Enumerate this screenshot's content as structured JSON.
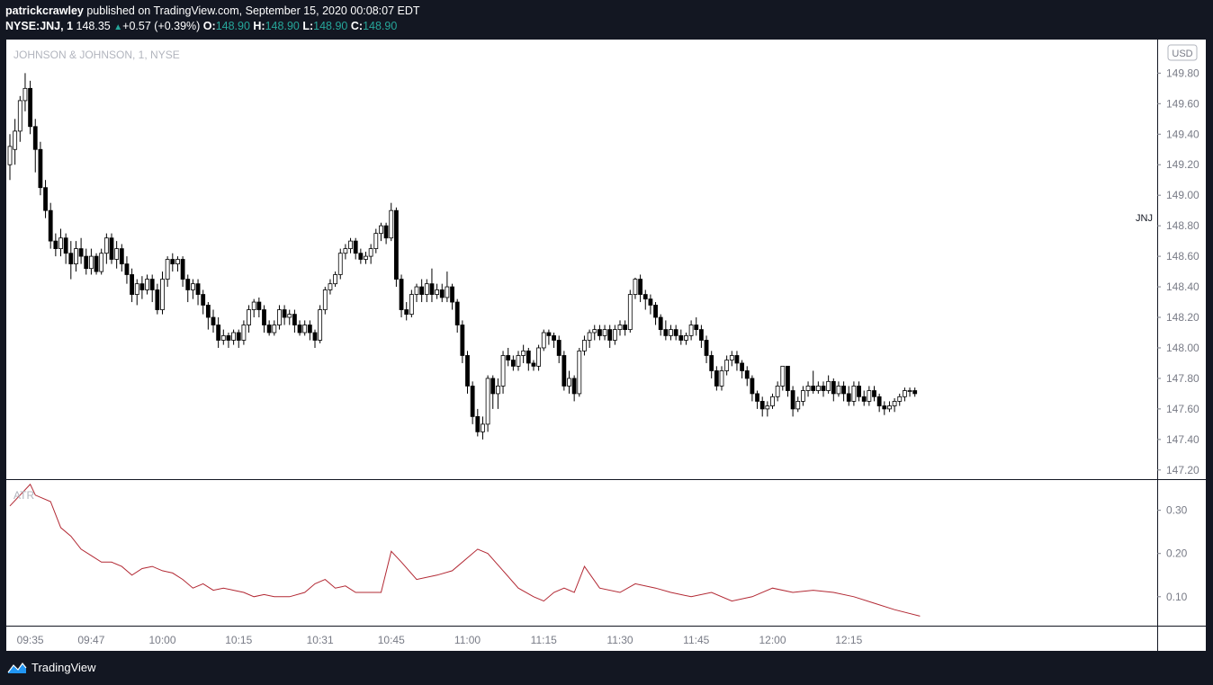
{
  "header": {
    "author": "patrickcrawley",
    "published_text": "published on TradingView.com, September 15, 2020 00:08:07 EDT",
    "symbol": "NYSE:JNJ, 1",
    "last": "148.35",
    "change": "+0.57 (+0.39%)",
    "o_label": "O:",
    "o": "148.90",
    "h_label": "H:",
    "h": "148.90",
    "l_label": "L:",
    "l": "148.90",
    "c_label": "C:",
    "c": "148.90"
  },
  "legend": "JOHNSON & JOHNSON, 1, NYSE",
  "currency": "USD",
  "symbol_tag": "JNJ",
  "indicator_label": "ATR",
  "footer": {
    "brand": "TradingView"
  },
  "colors": {
    "background": "#131722",
    "pane": "#ffffff",
    "up_fill": "#ffffff",
    "down_fill": "#000000",
    "atr_line": "#b22833",
    "positive": "#26a69a"
  },
  "chart_data": [
    {
      "type": "candlestick",
      "title": "JOHNSON & JOHNSON, 1, NYSE",
      "ylim": [
        147.14,
        150.02
      ],
      "y_ticks": [
        149.8,
        149.6,
        149.4,
        149.2,
        149.0,
        148.8,
        148.6,
        148.4,
        148.2,
        148.0,
        147.8,
        147.6,
        147.4,
        147.2
      ],
      "x_ticks": [
        "09:35",
        "09:47",
        "10:00",
        "10:15",
        "10:31",
        "10:45",
        "11:00",
        "11:15",
        "11:30",
        "11:45",
        "12:00",
        "12:15"
      ],
      "x_tick_index": [
        4,
        16,
        30,
        45,
        61,
        75,
        90,
        105,
        120,
        135,
        150,
        165
      ],
      "candles": [
        [
          149.2,
          149.32,
          149.1,
          149.4
        ],
        [
          149.3,
          149.42,
          149.2,
          149.5
        ],
        [
          149.42,
          149.62,
          149.35,
          149.65
        ],
        [
          149.62,
          149.7,
          149.55,
          149.8
        ],
        [
          149.7,
          149.45,
          149.4,
          149.75
        ],
        [
          149.45,
          149.3,
          149.15,
          149.5
        ],
        [
          149.3,
          149.05,
          149.0,
          149.35
        ],
        [
          149.05,
          148.9,
          148.85,
          149.1
        ],
        [
          148.9,
          148.7,
          148.65,
          148.95
        ],
        [
          148.7,
          148.65,
          148.6,
          148.75
        ],
        [
          148.65,
          148.72,
          148.6,
          148.78
        ],
        [
          148.72,
          148.62,
          148.55,
          148.75
        ],
        [
          148.62,
          148.55,
          148.45,
          148.7
        ],
        [
          148.55,
          148.65,
          148.5,
          148.7
        ],
        [
          148.65,
          148.6,
          148.55,
          148.72
        ],
        [
          148.6,
          148.52,
          148.48,
          148.65
        ],
        [
          148.52,
          148.6,
          148.48,
          148.65
        ],
        [
          148.6,
          148.5,
          148.48,
          148.62
        ],
        [
          148.5,
          148.62,
          148.48,
          148.65
        ],
        [
          148.62,
          148.72,
          148.55,
          148.75
        ],
        [
          148.72,
          148.58,
          148.55,
          148.75
        ],
        [
          148.58,
          148.65,
          148.52,
          148.7
        ],
        [
          148.65,
          148.55,
          148.5,
          148.68
        ],
        [
          148.55,
          148.48,
          148.42,
          148.6
        ],
        [
          148.48,
          148.35,
          148.3,
          148.52
        ],
        [
          148.35,
          148.42,
          148.28,
          148.45
        ],
        [
          148.42,
          148.38,
          148.32,
          148.47
        ],
        [
          148.38,
          148.45,
          148.35,
          148.48
        ],
        [
          148.45,
          148.38,
          148.3,
          148.48
        ],
        [
          148.38,
          148.25,
          148.22,
          148.42
        ],
        [
          148.25,
          148.45,
          148.22,
          148.5
        ],
        [
          148.45,
          148.58,
          148.4,
          148.6
        ],
        [
          148.58,
          148.55,
          148.5,
          148.62
        ],
        [
          148.55,
          148.58,
          148.5,
          148.6
        ],
        [
          148.58,
          148.45,
          148.4,
          148.6
        ],
        [
          148.45,
          148.38,
          148.3,
          148.48
        ],
        [
          148.38,
          148.42,
          148.32,
          148.45
        ],
        [
          148.42,
          148.35,
          148.28,
          148.45
        ],
        [
          148.35,
          148.28,
          148.22,
          148.38
        ],
        [
          148.28,
          148.2,
          148.12,
          148.3
        ],
        [
          148.2,
          148.15,
          148.1,
          148.25
        ],
        [
          148.15,
          148.05,
          148.0,
          148.2
        ],
        [
          148.05,
          148.08,
          148.02,
          148.12
        ],
        [
          148.08,
          148.05,
          148.0,
          148.1
        ],
        [
          148.05,
          148.1,
          148.02,
          148.12
        ],
        [
          148.1,
          148.05,
          148.0,
          148.12
        ],
        [
          148.05,
          148.15,
          148.02,
          148.18
        ],
        [
          148.15,
          148.25,
          148.1,
          148.28
        ],
        [
          148.25,
          148.3,
          148.2,
          148.32
        ],
        [
          148.3,
          148.25,
          148.2,
          148.33
        ],
        [
          148.25,
          148.15,
          148.1,
          148.28
        ],
        [
          148.15,
          148.1,
          148.08,
          148.18
        ],
        [
          148.1,
          148.15,
          148.08,
          148.18
        ],
        [
          148.15,
          148.25,
          148.12,
          148.28
        ],
        [
          148.25,
          148.2,
          148.15,
          148.28
        ],
        [
          148.2,
          148.22,
          148.15,
          148.25
        ],
        [
          148.22,
          148.15,
          148.1,
          148.25
        ],
        [
          148.15,
          148.1,
          148.08,
          148.18
        ],
        [
          148.1,
          148.15,
          148.08,
          148.18
        ],
        [
          148.15,
          148.1,
          148.05,
          148.18
        ],
        [
          148.1,
          148.05,
          148.0,
          148.12
        ],
        [
          148.05,
          148.25,
          148.03,
          148.28
        ],
        [
          148.25,
          148.38,
          148.22,
          148.4
        ],
        [
          148.38,
          148.42,
          148.35,
          148.45
        ],
        [
          148.42,
          148.48,
          148.4,
          148.5
        ],
        [
          148.48,
          148.62,
          148.45,
          148.65
        ],
        [
          148.62,
          148.65,
          148.58,
          148.68
        ],
        [
          148.65,
          148.7,
          148.62,
          148.72
        ],
        [
          148.7,
          148.62,
          148.58,
          148.72
        ],
        [
          148.62,
          148.58,
          148.55,
          148.65
        ],
        [
          148.58,
          148.6,
          148.55,
          148.63
        ],
        [
          148.6,
          148.65,
          148.55,
          148.68
        ],
        [
          148.65,
          148.75,
          148.62,
          148.78
        ],
        [
          148.75,
          148.8,
          148.7,
          148.82
        ],
        [
          148.8,
          148.72,
          148.68,
          148.82
        ],
        [
          148.72,
          148.9,
          148.7,
          148.95
        ],
        [
          148.9,
          148.45,
          148.4,
          148.92
        ],
        [
          148.45,
          148.25,
          148.2,
          148.48
        ],
        [
          148.25,
          148.22,
          148.18,
          148.3
        ],
        [
          148.22,
          148.35,
          148.2,
          148.38
        ],
        [
          148.35,
          148.4,
          148.3,
          148.42
        ],
        [
          148.4,
          148.35,
          148.3,
          148.45
        ],
        [
          148.35,
          148.42,
          148.3,
          148.45
        ],
        [
          148.42,
          148.35,
          148.3,
          148.52
        ],
        [
          148.35,
          148.38,
          148.32,
          148.42
        ],
        [
          148.38,
          148.33,
          148.3,
          148.42
        ],
        [
          148.33,
          148.4,
          148.3,
          148.5
        ],
        [
          148.4,
          148.3,
          148.25,
          148.42
        ],
        [
          148.3,
          148.15,
          148.1,
          148.32
        ],
        [
          148.15,
          147.95,
          147.9,
          148.18
        ],
        [
          147.95,
          147.75,
          147.7,
          147.98
        ],
        [
          147.75,
          147.55,
          147.5,
          147.78
        ],
        [
          147.55,
          147.45,
          147.42,
          147.6
        ],
        [
          147.45,
          147.5,
          147.4,
          147.55
        ],
        [
          147.5,
          147.8,
          147.45,
          147.82
        ],
        [
          147.8,
          147.7,
          147.6,
          147.82
        ],
        [
          147.7,
          147.75,
          147.6,
          147.8
        ],
        [
          147.75,
          147.95,
          147.7,
          147.98
        ],
        [
          147.95,
          147.92,
          147.88,
          148.0
        ],
        [
          147.92,
          147.88,
          147.85,
          147.95
        ],
        [
          147.88,
          147.95,
          147.85,
          147.98
        ],
        [
          147.95,
          147.98,
          147.9,
          148.02
        ],
        [
          147.98,
          147.9,
          147.85,
          148.0
        ],
        [
          147.9,
          147.88,
          147.85,
          147.92
        ],
        [
          147.88,
          148.0,
          147.85,
          148.02
        ],
        [
          148.0,
          148.1,
          147.98,
          148.12
        ],
        [
          148.1,
          148.08,
          148.02,
          148.12
        ],
        [
          148.08,
          148.05,
          148.0,
          148.1
        ],
        [
          148.05,
          147.95,
          147.9,
          148.08
        ],
        [
          147.95,
          147.75,
          147.72,
          147.98
        ],
        [
          147.75,
          147.8,
          147.7,
          147.85
        ],
        [
          147.8,
          147.7,
          147.65,
          147.82
        ],
        [
          147.7,
          147.98,
          147.68,
          148.0
        ],
        [
          147.98,
          148.05,
          147.95,
          148.08
        ],
        [
          148.05,
          148.1,
          148.0,
          148.12
        ],
        [
          148.1,
          148.12,
          148.05,
          148.15
        ],
        [
          148.12,
          148.08,
          148.05,
          148.15
        ],
        [
          148.08,
          148.12,
          148.05,
          148.15
        ],
        [
          148.12,
          148.05,
          148.0,
          148.15
        ],
        [
          148.05,
          148.12,
          148.02,
          148.15
        ],
        [
          148.12,
          148.15,
          148.08,
          148.18
        ],
        [
          148.15,
          148.12,
          148.08,
          148.18
        ],
        [
          148.12,
          148.35,
          148.1,
          148.38
        ],
        [
          148.35,
          148.45,
          148.32,
          148.46
        ],
        [
          148.45,
          148.35,
          148.3,
          148.48
        ],
        [
          148.35,
          148.32,
          148.25,
          148.38
        ],
        [
          148.32,
          148.28,
          148.22,
          148.35
        ],
        [
          148.28,
          148.2,
          148.15,
          148.3
        ],
        [
          148.2,
          148.12,
          148.08,
          148.22
        ],
        [
          148.12,
          148.08,
          148.05,
          148.18
        ],
        [
          148.08,
          148.12,
          148.05,
          148.15
        ],
        [
          148.12,
          148.08,
          148.05,
          148.15
        ],
        [
          148.08,
          148.05,
          148.02,
          148.12
        ],
        [
          148.05,
          148.08,
          148.02,
          148.1
        ],
        [
          148.08,
          148.15,
          148.05,
          148.18
        ],
        [
          148.15,
          148.12,
          148.08,
          148.2
        ],
        [
          148.12,
          148.05,
          148.0,
          148.15
        ],
        [
          148.05,
          147.95,
          147.9,
          148.08
        ],
        [
          147.95,
          147.85,
          147.8,
          147.98
        ],
        [
          147.85,
          147.75,
          147.72,
          147.88
        ],
        [
          147.75,
          147.85,
          147.72,
          147.88
        ],
        [
          147.85,
          147.92,
          147.82,
          147.95
        ],
        [
          147.92,
          147.95,
          147.88,
          147.98
        ],
        [
          147.95,
          147.9,
          147.85,
          147.98
        ],
        [
          147.9,
          147.85,
          147.8,
          147.92
        ],
        [
          147.85,
          147.8,
          147.75,
          147.88
        ],
        [
          147.8,
          147.7,
          147.65,
          147.82
        ],
        [
          147.7,
          147.65,
          147.6,
          147.72
        ],
        [
          147.65,
          147.6,
          147.55,
          147.68
        ],
        [
          147.6,
          147.62,
          147.55,
          147.65
        ],
        [
          147.62,
          147.68,
          147.6,
          147.7
        ],
        [
          147.68,
          147.75,
          147.65,
          147.78
        ],
        [
          147.75,
          147.88,
          147.72,
          147.88
        ],
        [
          147.88,
          147.72,
          147.68,
          147.88
        ],
        [
          147.72,
          147.6,
          147.55,
          147.75
        ],
        [
          147.6,
          147.65,
          147.58,
          147.68
        ],
        [
          147.65,
          147.72,
          147.62,
          147.75
        ],
        [
          147.72,
          147.75,
          147.68,
          147.78
        ],
        [
          147.75,
          147.72,
          147.7,
          147.85
        ],
        [
          147.72,
          147.75,
          147.7,
          147.78
        ],
        [
          147.75,
          147.72,
          147.68,
          147.78
        ],
        [
          147.72,
          147.78,
          147.7,
          147.82
        ],
        [
          147.78,
          147.7,
          147.65,
          147.8
        ],
        [
          147.7,
          147.75,
          147.68,
          147.78
        ],
        [
          147.75,
          147.7,
          147.65,
          147.78
        ],
        [
          147.7,
          147.65,
          147.62,
          147.75
        ],
        [
          147.65,
          147.75,
          147.62,
          147.78
        ],
        [
          147.75,
          147.68,
          147.65,
          147.78
        ],
        [
          147.68,
          147.65,
          147.62,
          147.72
        ],
        [
          147.65,
          147.72,
          147.62,
          147.75
        ],
        [
          147.72,
          147.68,
          147.65,
          147.75
        ],
        [
          147.68,
          147.62,
          147.58,
          147.7
        ],
        [
          147.62,
          147.6,
          147.56,
          147.65
        ],
        [
          147.6,
          147.62,
          147.58,
          147.65
        ],
        [
          147.62,
          147.65,
          147.58,
          147.67
        ],
        [
          147.65,
          147.68,
          147.62,
          147.7
        ],
        [
          147.68,
          147.72,
          147.65,
          147.74
        ],
        [
          147.72,
          147.72,
          147.68,
          147.74
        ],
        [
          147.72,
          147.7,
          147.68,
          147.74
        ]
      ]
    },
    {
      "type": "line",
      "title": "ATR",
      "ylim": [
        0.033,
        0.37
      ],
      "y_ticks": [
        0.3,
        0.2,
        0.1
      ],
      "x": [
        0,
        4,
        5,
        6,
        8,
        10,
        12,
        14,
        16,
        18,
        20,
        22,
        24,
        26,
        28,
        30,
        32,
        34,
        36,
        38,
        40,
        42,
        44,
        46,
        48,
        50,
        52,
        55,
        58,
        60,
        62,
        64,
        66,
        68,
        70,
        73,
        75,
        77,
        80,
        84,
        87,
        90,
        92,
        94,
        97,
        100,
        103,
        105,
        107,
        109,
        111,
        113,
        116,
        120,
        123,
        127,
        130,
        134,
        138,
        142,
        146,
        150,
        154,
        158,
        162,
        166,
        170,
        174,
        179
      ],
      "values": [
        0.31,
        0.36,
        0.335,
        0.33,
        0.32,
        0.26,
        0.24,
        0.21,
        0.195,
        0.18,
        0.18,
        0.17,
        0.15,
        0.165,
        0.17,
        0.16,
        0.155,
        0.14,
        0.12,
        0.13,
        0.115,
        0.12,
        0.115,
        0.11,
        0.1,
        0.105,
        0.1,
        0.1,
        0.11,
        0.13,
        0.14,
        0.12,
        0.125,
        0.11,
        0.11,
        0.11,
        0.205,
        0.18,
        0.14,
        0.15,
        0.16,
        0.19,
        0.21,
        0.2,
        0.16,
        0.12,
        0.1,
        0.09,
        0.11,
        0.12,
        0.11,
        0.17,
        0.12,
        0.11,
        0.13,
        0.12,
        0.11,
        0.1,
        0.11,
        0.09,
        0.1,
        0.12,
        0.11,
        0.115,
        0.11,
        0.1,
        0.085,
        0.07,
        0.055
      ]
    }
  ]
}
